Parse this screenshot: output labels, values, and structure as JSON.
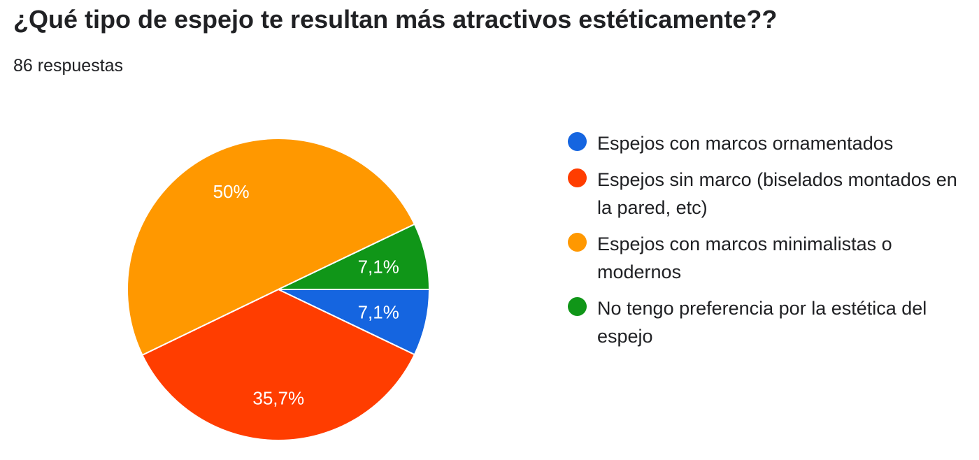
{
  "title": "¿Qué tipo de espejo te resultan más atractivos estéticamente??",
  "response_count": "86 respuestas",
  "chart_data": {
    "type": "pie",
    "title": "¿Qué tipo de espejo te resultan más atractivos estéticamente??",
    "slices": [
      {
        "label": "Espejos con marcos ornamentados",
        "value": 7.1,
        "display": "7,1%",
        "color": "#1565e0"
      },
      {
        "label": "Espejos sin marco (biselados montados en la pared, etc)",
        "value": 35.7,
        "display": "35,7%",
        "color": "#ff3d00"
      },
      {
        "label": "Espejos con marcos minimalistas o modernos",
        "value": 50,
        "display": "50%",
        "color": "#ff9800"
      },
      {
        "label": "No tengo preferencia por la estética del espejo",
        "value": 7.1,
        "display": "7,1%",
        "color": "#109618"
      }
    ],
    "legend_position": "right"
  }
}
